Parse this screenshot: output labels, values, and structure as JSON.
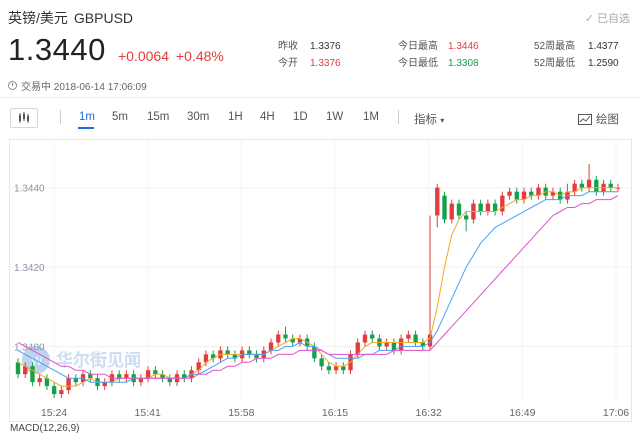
{
  "header": {
    "name": "英镑/美元",
    "code": "GBPUSD",
    "added_label": "已自选",
    "price": "1.3440",
    "change": "+0.0064",
    "change_pct": "+0.48%",
    "status": "交易中 2018-06-14 17:06:09"
  },
  "stats": [
    {
      "label": "昨收",
      "value": "1.3376",
      "color": "#333333"
    },
    {
      "label": "今开",
      "value": "1.3376",
      "color": "#e23c3c"
    },
    {
      "label": "今日最高",
      "value": "1.3446",
      "color": "#e23c3c"
    },
    {
      "label": "今日最低",
      "value": "1.3308",
      "color": "#15a04a"
    },
    {
      "label": "52周最高",
      "value": "1.4377",
      "color": "#333333"
    },
    {
      "label": "52周最低",
      "value": "1.2590",
      "color": "#333333"
    }
  ],
  "toolbar": {
    "timeframes": [
      "1m",
      "5m",
      "15m",
      "30m",
      "1H",
      "4H",
      "1D",
      "1W",
      "1M"
    ],
    "active": "1m",
    "indicator_label": "指标",
    "draw_label": "绘图"
  },
  "colors": {
    "up": "#e23c3c",
    "down": "#15a04a",
    "accent": "#1a6ed8"
  },
  "watermark": "华尔街见闻",
  "macd_label": "MACD(12,26,9)",
  "chart_data": {
    "type": "candlestick",
    "x_tick_labels": [
      "15:24",
      "15:41",
      "15:58",
      "16:15",
      "16:32",
      "16:49",
      "17:06"
    ],
    "y_tick_labels": [
      "1.3440",
      "1.3420",
      "1.3400"
    ],
    "ylim": [
      1.3386,
      1.345
    ],
    "candles": [
      [
        1.3396,
        1.3393,
        1.3397,
        1.3392
      ],
      [
        1.3393,
        1.3395,
        1.3396,
        1.3392
      ],
      [
        1.3395,
        1.3391,
        1.3396,
        1.339
      ],
      [
        1.3391,
        1.3392,
        1.3393,
        1.339
      ],
      [
        1.3392,
        1.339,
        1.3393,
        1.3389
      ],
      [
        1.339,
        1.3388,
        1.3391,
        1.3387
      ],
      [
        1.3388,
        1.3389,
        1.339,
        1.3387
      ],
      [
        1.3389,
        1.3392,
        1.3393,
        1.3388
      ],
      [
        1.3392,
        1.3391,
        1.3393,
        1.339
      ],
      [
        1.3391,
        1.3393,
        1.3394,
        1.339
      ],
      [
        1.3393,
        1.3392,
        1.3394,
        1.3391
      ],
      [
        1.3392,
        1.339,
        1.3393,
        1.3389
      ],
      [
        1.339,
        1.3391,
        1.3392,
        1.3389
      ],
      [
        1.3391,
        1.3393,
        1.3394,
        1.339
      ],
      [
        1.3393,
        1.3392,
        1.3394,
        1.3391
      ],
      [
        1.3392,
        1.3393,
        1.3394,
        1.3391
      ],
      [
        1.3393,
        1.3391,
        1.3394,
        1.339
      ],
      [
        1.3391,
        1.3392,
        1.3393,
        1.339
      ],
      [
        1.3392,
        1.3394,
        1.3395,
        1.3391
      ],
      [
        1.3394,
        1.3393,
        1.3395,
        1.3392
      ],
      [
        1.3393,
        1.3392,
        1.3394,
        1.3391
      ],
      [
        1.3392,
        1.3391,
        1.3393,
        1.339
      ],
      [
        1.3391,
        1.3393,
        1.3394,
        1.339
      ],
      [
        1.3393,
        1.3392,
        1.3394,
        1.3391
      ],
      [
        1.3392,
        1.3394,
        1.3395,
        1.3391
      ],
      [
        1.3394,
        1.3396,
        1.3397,
        1.3393
      ],
      [
        1.3396,
        1.3398,
        1.3399,
        1.3395
      ],
      [
        1.3398,
        1.3397,
        1.3399,
        1.3396
      ],
      [
        1.3397,
        1.3399,
        1.34,
        1.3396
      ],
      [
        1.3399,
        1.3398,
        1.34,
        1.3397
      ],
      [
        1.3398,
        1.3397,
        1.3399,
        1.3396
      ],
      [
        1.3397,
        1.3399,
        1.34,
        1.3396
      ],
      [
        1.3399,
        1.3398,
        1.34,
        1.3397
      ],
      [
        1.3398,
        1.3397,
        1.3399,
        1.3396
      ],
      [
        1.3397,
        1.3399,
        1.34,
        1.3396
      ],
      [
        1.3399,
        1.3401,
        1.3402,
        1.3398
      ],
      [
        1.3401,
        1.3403,
        1.3404,
        1.34
      ],
      [
        1.3403,
        1.3402,
        1.3405,
        1.3401
      ],
      [
        1.3402,
        1.3401,
        1.3403,
        1.34
      ],
      [
        1.3401,
        1.3402,
        1.3403,
        1.34
      ],
      [
        1.3402,
        1.34,
        1.3403,
        1.3399
      ],
      [
        1.34,
        1.3397,
        1.3401,
        1.3396
      ],
      [
        1.3397,
        1.3395,
        1.3398,
        1.3394
      ],
      [
        1.3395,
        1.3394,
        1.3396,
        1.3393
      ],
      [
        1.3394,
        1.3395,
        1.3396,
        1.3393
      ],
      [
        1.3395,
        1.3394,
        1.3396,
        1.3393
      ],
      [
        1.3394,
        1.3398,
        1.3399,
        1.3393
      ],
      [
        1.3398,
        1.3401,
        1.3402,
        1.3397
      ],
      [
        1.3401,
        1.3403,
        1.3404,
        1.34
      ],
      [
        1.3403,
        1.3402,
        1.3404,
        1.3401
      ],
      [
        1.3402,
        1.34,
        1.3403,
        1.3399
      ],
      [
        1.34,
        1.3401,
        1.3402,
        1.3399
      ],
      [
        1.3401,
        1.3399,
        1.3402,
        1.3398
      ],
      [
        1.3399,
        1.3402,
        1.3403,
        1.3398
      ],
      [
        1.3402,
        1.3403,
        1.3404,
        1.3401
      ],
      [
        1.3403,
        1.3401,
        1.3404,
        1.34
      ],
      [
        1.3401,
        1.34,
        1.3402,
        1.3399
      ],
      [
        1.34,
        1.3403,
        1.3433,
        1.3399
      ],
      [
        1.3433,
        1.344,
        1.3441,
        1.343
      ],
      [
        1.3438,
        1.3432,
        1.3439,
        1.3431
      ],
      [
        1.3432,
        1.3436,
        1.3437,
        1.3431
      ],
      [
        1.3436,
        1.3433,
        1.3437,
        1.3432
      ],
      [
        1.3433,
        1.3432,
        1.3434,
        1.3429
      ],
      [
        1.3432,
        1.3436,
        1.3437,
        1.3431
      ],
      [
        1.3436,
        1.3434,
        1.3437,
        1.3433
      ],
      [
        1.3434,
        1.3436,
        1.3437,
        1.3433
      ],
      [
        1.3436,
        1.3434,
        1.3437,
        1.3433
      ],
      [
        1.3434,
        1.3438,
        1.3439,
        1.3433
      ],
      [
        1.3438,
        1.3439,
        1.344,
        1.3437
      ],
      [
        1.3439,
        1.3437,
        1.344,
        1.3436
      ],
      [
        1.3437,
        1.3439,
        1.344,
        1.3436
      ],
      [
        1.3439,
        1.3438,
        1.344,
        1.3437
      ],
      [
        1.3438,
        1.344,
        1.3441,
        1.3437
      ],
      [
        1.344,
        1.3438,
        1.3441,
        1.3437
      ],
      [
        1.3438,
        1.3439,
        1.344,
        1.3437
      ],
      [
        1.3439,
        1.3437,
        1.344,
        1.3436
      ],
      [
        1.3437,
        1.3439,
        1.3441,
        1.3436
      ],
      [
        1.3439,
        1.3441,
        1.3442,
        1.3438
      ],
      [
        1.3441,
        1.344,
        1.3442,
        1.3439
      ],
      [
        1.344,
        1.3442,
        1.3446,
        1.3439
      ],
      [
        1.3442,
        1.3439,
        1.3443,
        1.3438
      ],
      [
        1.3439,
        1.3441,
        1.3442,
        1.3438
      ],
      [
        1.3441,
        1.344,
        1.3442,
        1.3439
      ],
      [
        1.344,
        1.344,
        1.3441,
        1.3439
      ]
    ],
    "ma_series": [
      {
        "color": "#f5a623",
        "values": [
          1.3396,
          1.3395,
          1.3394,
          1.3393,
          1.3392,
          1.3391,
          1.339,
          1.339,
          1.339,
          1.3391,
          1.3392,
          1.3391,
          1.3391,
          1.3391,
          1.3392,
          1.3392,
          1.3392,
          1.3392,
          1.3392,
          1.3393,
          1.3393,
          1.3392,
          1.3392,
          1.3392,
          1.3393,
          1.3394,
          1.3396,
          1.3397,
          1.3398,
          1.3398,
          1.3398,
          1.3398,
          1.3398,
          1.3398,
          1.3398,
          1.3399,
          1.34,
          1.3401,
          1.3402,
          1.3402,
          1.3401,
          1.34,
          1.3398,
          1.3396,
          1.3395,
          1.3395,
          1.3396,
          1.3398,
          1.34,
          1.3401,
          1.3401,
          1.3401,
          1.3401,
          1.3401,
          1.3401,
          1.3401,
          1.3401,
          1.3402,
          1.341,
          1.342,
          1.3428,
          1.3432,
          1.3434,
          1.3434,
          1.3434,
          1.3434,
          1.3434,
          1.3435,
          1.3436,
          1.3437,
          1.3437,
          1.3438,
          1.3438,
          1.3439,
          1.3439,
          1.3438,
          1.3439,
          1.3439,
          1.344,
          1.344,
          1.344,
          1.344,
          1.344,
          1.344
        ]
      },
      {
        "color": "#4a9ff5",
        "values": [
          1.3399,
          1.3398,
          1.3397,
          1.3396,
          1.3395,
          1.3394,
          1.3393,
          1.3392,
          1.3392,
          1.3392,
          1.3391,
          1.3391,
          1.3391,
          1.3391,
          1.3391,
          1.3391,
          1.3392,
          1.3392,
          1.3392,
          1.3392,
          1.3392,
          1.3392,
          1.3392,
          1.3392,
          1.3393,
          1.3393,
          1.3394,
          1.3395,
          1.3396,
          1.3397,
          1.3397,
          1.3398,
          1.3398,
          1.3398,
          1.3398,
          1.3399,
          1.3399,
          1.34,
          1.34,
          1.3401,
          1.34,
          1.34,
          1.3399,
          1.3398,
          1.3397,
          1.3397,
          1.3397,
          1.3397,
          1.3398,
          1.3398,
          1.3399,
          1.3399,
          1.3399,
          1.34,
          1.34,
          1.34,
          1.34,
          1.3401,
          1.3404,
          1.3408,
          1.3412,
          1.3416,
          1.342,
          1.3423,
          1.3426,
          1.3428,
          1.343,
          1.3431,
          1.3432,
          1.3433,
          1.3434,
          1.3435,
          1.3436,
          1.3437,
          1.3437,
          1.3437,
          1.3438,
          1.3438,
          1.3438,
          1.3439,
          1.3439,
          1.3439,
          1.3439,
          1.3439
        ]
      },
      {
        "color": "#e052c8",
        "values": [
          1.3401,
          1.34,
          1.3399,
          1.3398,
          1.3397,
          1.3396,
          1.3395,
          1.3395,
          1.3394,
          1.3394,
          1.3393,
          1.3393,
          1.3393,
          1.3392,
          1.3392,
          1.3392,
          1.3392,
          1.3392,
          1.3392,
          1.3392,
          1.3392,
          1.3392,
          1.3392,
          1.3392,
          1.3392,
          1.3393,
          1.3393,
          1.3394,
          1.3394,
          1.3395,
          1.3395,
          1.3396,
          1.3396,
          1.3397,
          1.3397,
          1.3397,
          1.3398,
          1.3398,
          1.3398,
          1.3399,
          1.3399,
          1.3399,
          1.3399,
          1.3398,
          1.3398,
          1.3398,
          1.3398,
          1.3398,
          1.3398,
          1.3398,
          1.3398,
          1.3398,
          1.3399,
          1.3399,
          1.3399,
          1.3399,
          1.3399,
          1.3399,
          1.3401,
          1.3403,
          1.3405,
          1.3407,
          1.3409,
          1.3411,
          1.3413,
          1.3415,
          1.3417,
          1.3419,
          1.3421,
          1.3423,
          1.3425,
          1.3427,
          1.3429,
          1.3431,
          1.3433,
          1.3434,
          1.3435,
          1.3435,
          1.3436,
          1.3436,
          1.3437,
          1.3437,
          1.3437,
          1.3438
        ]
      }
    ]
  }
}
